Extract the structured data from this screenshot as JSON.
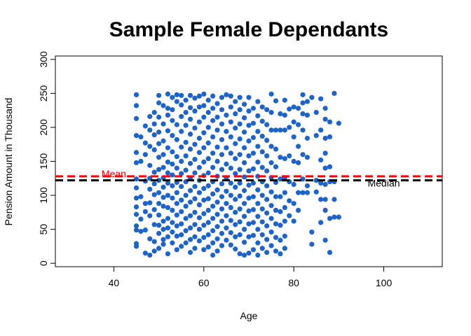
{
  "chart_data": {
    "type": "scatter",
    "title": "Sample Female Dependants",
    "xlabel": "Age",
    "ylabel": "Pension Amount in Thousand",
    "xlim": [
      27,
      113
    ],
    "ylim": [
      -5,
      305
    ],
    "x_ticks": [
      40,
      60,
      80,
      100
    ],
    "y_ticks": [
      0,
      50,
      100,
      150,
      200,
      250,
      300
    ],
    "grid": false,
    "legend": "none",
    "point_color": "#1f63c6",
    "points": [
      [
        45,
        248
      ],
      [
        45,
        232
      ],
      [
        45,
        213
      ],
      [
        45,
        188
      ],
      [
        45,
        163
      ],
      [
        45,
        148
      ],
      [
        45,
        124
      ],
      [
        45,
        111
      ],
      [
        45,
        96
      ],
      [
        45,
        83
      ],
      [
        45,
        72
      ],
      [
        45,
        55
      ],
      [
        45,
        49
      ],
      [
        45,
        29
      ],
      [
        45,
        25
      ],
      [
        46,
        186
      ],
      [
        46,
        150
      ],
      [
        46,
        98
      ],
      [
        46,
        65
      ],
      [
        46,
        47
      ],
      [
        47,
        202
      ],
      [
        47,
        177
      ],
      [
        47,
        160
      ],
      [
        47,
        121
      ],
      [
        47,
        88
      ],
      [
        47,
        76
      ],
      [
        47,
        49
      ],
      [
        47,
        15
      ],
      [
        48,
        216
      ],
      [
        48,
        196
      ],
      [
        48,
        172
      ],
      [
        48,
        144
      ],
      [
        48,
        125
      ],
      [
        48,
        109
      ],
      [
        48,
        89
      ],
      [
        48,
        70
      ],
      [
        48,
        36
      ],
      [
        48,
        12
      ],
      [
        49,
        222
      ],
      [
        49,
        205
      ],
      [
        49,
        189
      ],
      [
        49,
        167
      ],
      [
        49,
        134
      ],
      [
        49,
        117
      ],
      [
        49,
        101
      ],
      [
        49,
        79
      ],
      [
        49,
        57
      ],
      [
        49,
        32
      ],
      [
        49,
        18
      ],
      [
        50,
        247
      ],
      [
        50,
        236
      ],
      [
        50,
        215
      ],
      [
        50,
        193
      ],
      [
        50,
        176
      ],
      [
        50,
        156
      ],
      [
        50,
        138
      ],
      [
        50,
        122
      ],
      [
        50,
        104
      ],
      [
        50,
        88
      ],
      [
        50,
        71
      ],
      [
        50,
        56
      ],
      [
        50,
        44
      ],
      [
        50,
        22
      ],
      [
        51,
        232
      ],
      [
        51,
        205
      ],
      [
        51,
        180
      ],
      [
        51,
        160
      ],
      [
        51,
        141
      ],
      [
        51,
        126
      ],
      [
        51,
        112
      ],
      [
        51,
        97
      ],
      [
        51,
        84
      ],
      [
        51,
        62
      ],
      [
        51,
        50
      ],
      [
        51,
        35
      ],
      [
        51,
        28
      ],
      [
        52,
        249
      ],
      [
        52,
        228
      ],
      [
        52,
        218
      ],
      [
        52,
        195
      ],
      [
        52,
        170
      ],
      [
        52,
        149
      ],
      [
        52,
        133
      ],
      [
        52,
        118
      ],
      [
        52,
        100
      ],
      [
        52,
        82
      ],
      [
        52,
        66
      ],
      [
        52,
        52
      ],
      [
        52,
        39
      ],
      [
        52,
        14
      ],
      [
        53,
        244
      ],
      [
        53,
        226
      ],
      [
        53,
        210
      ],
      [
        53,
        188
      ],
      [
        53,
        164
      ],
      [
        53,
        146
      ],
      [
        53,
        130
      ],
      [
        53,
        114
      ],
      [
        53,
        96
      ],
      [
        53,
        78
      ],
      [
        53,
        60
      ],
      [
        53,
        46
      ],
      [
        53,
        30
      ],
      [
        54,
        248
      ],
      [
        54,
        238
      ],
      [
        54,
        204
      ],
      [
        54,
        182
      ],
      [
        54,
        157
      ],
      [
        54,
        140
      ],
      [
        54,
        119
      ],
      [
        54,
        104
      ],
      [
        54,
        88
      ],
      [
        54,
        71
      ],
      [
        54,
        55
      ],
      [
        54,
        40
      ],
      [
        54,
        20
      ],
      [
        55,
        247
      ],
      [
        55,
        233
      ],
      [
        55,
        216
      ],
      [
        55,
        194
      ],
      [
        55,
        171
      ],
      [
        55,
        150
      ],
      [
        55,
        132
      ],
      [
        55,
        113
      ],
      [
        55,
        93
      ],
      [
        55,
        76
      ],
      [
        55,
        58
      ],
      [
        55,
        42
      ],
      [
        55,
        25
      ],
      [
        56,
        240
      ],
      [
        56,
        222
      ],
      [
        56,
        203
      ],
      [
        56,
        178
      ],
      [
        56,
        158
      ],
      [
        56,
        137
      ],
      [
        56,
        120
      ],
      [
        56,
        100
      ],
      [
        56,
        84
      ],
      [
        56,
        66
      ],
      [
        56,
        48
      ],
      [
        56,
        30
      ],
      [
        57,
        247
      ],
      [
        57,
        229
      ],
      [
        57,
        212
      ],
      [
        57,
        190
      ],
      [
        57,
        168
      ],
      [
        57,
        147
      ],
      [
        57,
        125
      ],
      [
        57,
        107
      ],
      [
        57,
        90
      ],
      [
        57,
        70
      ],
      [
        57,
        52
      ],
      [
        57,
        35
      ],
      [
        57,
        16
      ],
      [
        58,
        243
      ],
      [
        58,
        224
      ],
      [
        58,
        199
      ],
      [
        58,
        175
      ],
      [
        58,
        153
      ],
      [
        58,
        133
      ],
      [
        58,
        113
      ],
      [
        58,
        95
      ],
      [
        58,
        75
      ],
      [
        58,
        57
      ],
      [
        58,
        39
      ],
      [
        58,
        22
      ],
      [
        59,
        246
      ],
      [
        59,
        230
      ],
      [
        59,
        208
      ],
      [
        59,
        184
      ],
      [
        59,
        163
      ],
      [
        59,
        141
      ],
      [
        59,
        122
      ],
      [
        59,
        104
      ],
      [
        59,
        86
      ],
      [
        59,
        67
      ],
      [
        59,
        50
      ],
      [
        59,
        33
      ],
      [
        60,
        249
      ],
      [
        60,
        232
      ],
      [
        60,
        215
      ],
      [
        60,
        192
      ],
      [
        60,
        170
      ],
      [
        60,
        149
      ],
      [
        60,
        129
      ],
      [
        60,
        110
      ],
      [
        60,
        93
      ],
      [
        60,
        73
      ],
      [
        60,
        56
      ],
      [
        60,
        38
      ],
      [
        60,
        20
      ],
      [
        61,
        240
      ],
      [
        61,
        222
      ],
      [
        61,
        200
      ],
      [
        61,
        177
      ],
      [
        61,
        154
      ],
      [
        61,
        133
      ],
      [
        61,
        114
      ],
      [
        61,
        95
      ],
      [
        61,
        78
      ],
      [
        61,
        60
      ],
      [
        61,
        42
      ],
      [
        61,
        24
      ],
      [
        62,
        246
      ],
      [
        62,
        228
      ],
      [
        62,
        210
      ],
      [
        62,
        186
      ],
      [
        62,
        162
      ],
      [
        62,
        141
      ],
      [
        62,
        120
      ],
      [
        62,
        102
      ],
      [
        62,
        84
      ],
      [
        62,
        66
      ],
      [
        62,
        48
      ],
      [
        62,
        30
      ],
      [
        62,
        12
      ],
      [
        63,
        235
      ],
      [
        63,
        215
      ],
      [
        63,
        196
      ],
      [
        63,
        171
      ],
      [
        63,
        150
      ],
      [
        63,
        128
      ],
      [
        63,
        108
      ],
      [
        63,
        90
      ],
      [
        63,
        72
      ],
      [
        63,
        54
      ],
      [
        63,
        36
      ],
      [
        63,
        18
      ],
      [
        64,
        244
      ],
      [
        64,
        226
      ],
      [
        64,
        205
      ],
      [
        64,
        182
      ],
      [
        64,
        160
      ],
      [
        64,
        138
      ],
      [
        64,
        117
      ],
      [
        64,
        98
      ],
      [
        64,
        80
      ],
      [
        64,
        62
      ],
      [
        64,
        44
      ],
      [
        64,
        26
      ],
      [
        65,
        248
      ],
      [
        65,
        218
      ],
      [
        65,
        194
      ],
      [
        65,
        170
      ],
      [
        65,
        146
      ],
      [
        65,
        126
      ],
      [
        65,
        106
      ],
      [
        65,
        88
      ],
      [
        65,
        70
      ],
      [
        65,
        52
      ],
      [
        65,
        34
      ],
      [
        66,
        246
      ],
      [
        66,
        230
      ],
      [
        66,
        208
      ],
      [
        66,
        186
      ],
      [
        66,
        162
      ],
      [
        66,
        140
      ],
      [
        66,
        118
      ],
      [
        66,
        100
      ],
      [
        66,
        82
      ],
      [
        66,
        63
      ],
      [
        66,
        45
      ],
      [
        66,
        27
      ],
      [
        67,
        238
      ],
      [
        67,
        220
      ],
      [
        67,
        199
      ],
      [
        67,
        176
      ],
      [
        67,
        154
      ],
      [
        67,
        132
      ],
      [
        67,
        112
      ],
      [
        67,
        94
      ],
      [
        67,
        75
      ],
      [
        67,
        57
      ],
      [
        67,
        39
      ],
      [
        67,
        21
      ],
      [
        68,
        244
      ],
      [
        68,
        226
      ],
      [
        68,
        205
      ],
      [
        68,
        183
      ],
      [
        68,
        160
      ],
      [
        68,
        138
      ],
      [
        68,
        118
      ],
      [
        68,
        99
      ],
      [
        68,
        80
      ],
      [
        68,
        61
      ],
      [
        68,
        42
      ],
      [
        68,
        14
      ],
      [
        69,
        234
      ],
      [
        69,
        214
      ],
      [
        69,
        193
      ],
      [
        69,
        170
      ],
      [
        69,
        148
      ],
      [
        69,
        127
      ],
      [
        69,
        107
      ],
      [
        69,
        88
      ],
      [
        69,
        69
      ],
      [
        69,
        50
      ],
      [
        69,
        31
      ],
      [
        69,
        12
      ],
      [
        70,
        244
      ],
      [
        70,
        224
      ],
      [
        70,
        203
      ],
      [
        70,
        180
      ],
      [
        70,
        158
      ],
      [
        70,
        136
      ],
      [
        70,
        115
      ],
      [
        70,
        96
      ],
      [
        70,
        77
      ],
      [
        70,
        58
      ],
      [
        70,
        39
      ],
      [
        70,
        15
      ],
      [
        71,
        228
      ],
      [
        71,
        206
      ],
      [
        71,
        185
      ],
      [
        71,
        162
      ],
      [
        71,
        139
      ],
      [
        71,
        118
      ],
      [
        71,
        98
      ],
      [
        71,
        79
      ],
      [
        71,
        60
      ],
      [
        71,
        41
      ],
      [
        71,
        20
      ],
      [
        72,
        238
      ],
      [
        72,
        217
      ],
      [
        72,
        194
      ],
      [
        72,
        172
      ],
      [
        72,
        149
      ],
      [
        72,
        128
      ],
      [
        72,
        108
      ],
      [
        72,
        88
      ],
      [
        72,
        69
      ],
      [
        72,
        50
      ],
      [
        72,
        30
      ],
      [
        72,
        12
      ],
      [
        73,
        230
      ],
      [
        73,
        209
      ],
      [
        73,
        187
      ],
      [
        73,
        164
      ],
      [
        73,
        141
      ],
      [
        73,
        120
      ],
      [
        73,
        100
      ],
      [
        73,
        80
      ],
      [
        73,
        61
      ],
      [
        73,
        42
      ],
      [
        73,
        22
      ],
      [
        74,
        226
      ],
      [
        74,
        204
      ],
      [
        74,
        181
      ],
      [
        74,
        158
      ],
      [
        74,
        136
      ],
      [
        74,
        114
      ],
      [
        74,
        94
      ],
      [
        74,
        74
      ],
      [
        74,
        55
      ],
      [
        74,
        35
      ],
      [
        74,
        16
      ],
      [
        75,
        249
      ],
      [
        75,
        222
      ],
      [
        75,
        196
      ],
      [
        75,
        172
      ],
      [
        75,
        148
      ],
      [
        75,
        126
      ],
      [
        75,
        105
      ],
      [
        75,
        85
      ],
      [
        75,
        66
      ],
      [
        75,
        46
      ],
      [
        75,
        26
      ],
      [
        76,
        239
      ],
      [
        76,
        196
      ],
      [
        76,
        168
      ],
      [
        76,
        142
      ],
      [
        76,
        119
      ],
      [
        76,
        98
      ],
      [
        76,
        78
      ],
      [
        76,
        58
      ],
      [
        76,
        38
      ],
      [
        76,
        18
      ],
      [
        77,
        220
      ],
      [
        77,
        196
      ],
      [
        77,
        156
      ],
      [
        77,
        124
      ],
      [
        77,
        98
      ],
      [
        77,
        76
      ],
      [
        77,
        56
      ],
      [
        77,
        34
      ],
      [
        77,
        14
      ],
      [
        78,
        240
      ],
      [
        78,
        218
      ],
      [
        78,
        196
      ],
      [
        78,
        154
      ],
      [
        78,
        126
      ],
      [
        78,
        104
      ],
      [
        78,
        82
      ],
      [
        78,
        62
      ],
      [
        78,
        40
      ],
      [
        78,
        22
      ],
      [
        79,
        227
      ],
      [
        79,
        200
      ],
      [
        79,
        158
      ],
      [
        79,
        120
      ],
      [
        79,
        92
      ],
      [
        79,
        70
      ],
      [
        80,
        230
      ],
      [
        80,
        208
      ],
      [
        80,
        186
      ],
      [
        80,
        150
      ],
      [
        80,
        116
      ],
      [
        80,
        88
      ],
      [
        80,
        62
      ],
      [
        81,
        228
      ],
      [
        81,
        204
      ],
      [
        81,
        172
      ],
      [
        81,
        148
      ],
      [
        81,
        104
      ],
      [
        81,
        78
      ],
      [
        82,
        248
      ],
      [
        82,
        236
      ],
      [
        82,
        220
      ],
      [
        82,
        196
      ],
      [
        82,
        160
      ],
      [
        82,
        124
      ],
      [
        82,
        104
      ],
      [
        83,
        238
      ],
      [
        83,
        218
      ],
      [
        83,
        184
      ],
      [
        83,
        156
      ],
      [
        83,
        114
      ],
      [
        83,
        104
      ],
      [
        84,
        244
      ],
      [
        84,
        46
      ],
      [
        84,
        28
      ],
      [
        85,
        222
      ],
      [
        85,
        188
      ],
      [
        85,
        122
      ],
      [
        85,
        105
      ],
      [
        86,
        242
      ],
      [
        86,
        196
      ],
      [
        86,
        152
      ],
      [
        86,
        118
      ],
      [
        86,
        94
      ],
      [
        86,
        60
      ],
      [
        87,
        228
      ],
      [
        87,
        212
      ],
      [
        87,
        184
      ],
      [
        87,
        162
      ],
      [
        87,
        140
      ],
      [
        87,
        116
      ],
      [
        87,
        94
      ],
      [
        87,
        78
      ],
      [
        87,
        34
      ],
      [
        88,
        208
      ],
      [
        88,
        186
      ],
      [
        88,
        142
      ],
      [
        88,
        120
      ],
      [
        88,
        66
      ],
      [
        88,
        16
      ],
      [
        89,
        250
      ],
      [
        89,
        120
      ],
      [
        89,
        94
      ],
      [
        89,
        68
      ],
      [
        90,
        206
      ],
      [
        90,
        68
      ]
    ],
    "reference_lines": [
      {
        "label": "Mean",
        "value": 128,
        "color": "#ff0000",
        "label_x": 40
      },
      {
        "label": "Median",
        "value": 122,
        "color": "#000000",
        "label_x": 100
      }
    ]
  }
}
